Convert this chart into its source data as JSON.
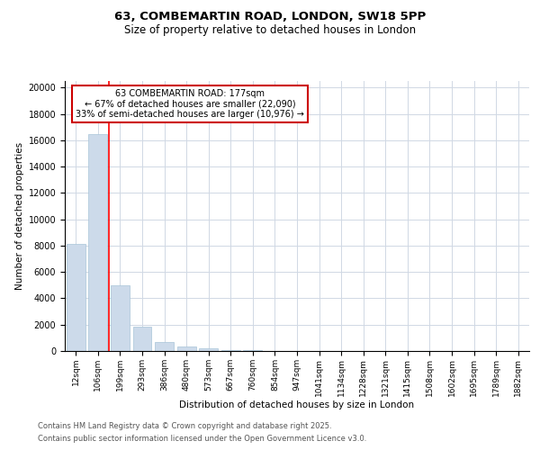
{
  "title_line1": "63, COMBEMARTIN ROAD, LONDON, SW18 5PP",
  "title_line2": "Size of property relative to detached houses in London",
  "xlabel": "Distribution of detached houses by size in London",
  "ylabel": "Number of detached properties",
  "bar_labels": [
    "12sqm",
    "106sqm",
    "199sqm",
    "293sqm",
    "386sqm",
    "480sqm",
    "573sqm",
    "667sqm",
    "760sqm",
    "854sqm",
    "947sqm",
    "1041sqm",
    "1134sqm",
    "1228sqm",
    "1321sqm",
    "1415sqm",
    "1508sqm",
    "1602sqm",
    "1695sqm",
    "1789sqm",
    "1882sqm"
  ],
  "bar_values": [
    8100,
    16500,
    5000,
    1850,
    700,
    350,
    200,
    100,
    50,
    20,
    8,
    4,
    3,
    2,
    2,
    1,
    1,
    1,
    1,
    1,
    0
  ],
  "bar_color": "#ccdaea",
  "bar_edgecolor": "#a8c4d8",
  "grid_color": "#d0d8e4",
  "red_line_x": 1.5,
  "annotation_text": "63 COMBEMARTIN ROAD: 177sqm\n← 67% of detached houses are smaller (22,090)\n33% of semi-detached houses are larger (10,976) →",
  "annotation_box_color": "#ffffff",
  "annotation_border_color": "#cc0000",
  "ylim": [
    0,
    20500
  ],
  "yticks": [
    0,
    2000,
    4000,
    6000,
    8000,
    10000,
    12000,
    14000,
    16000,
    18000,
    20000
  ],
  "footnote1": "Contains HM Land Registry data © Crown copyright and database right 2025.",
  "footnote2": "Contains public sector information licensed under the Open Government Licence v3.0."
}
